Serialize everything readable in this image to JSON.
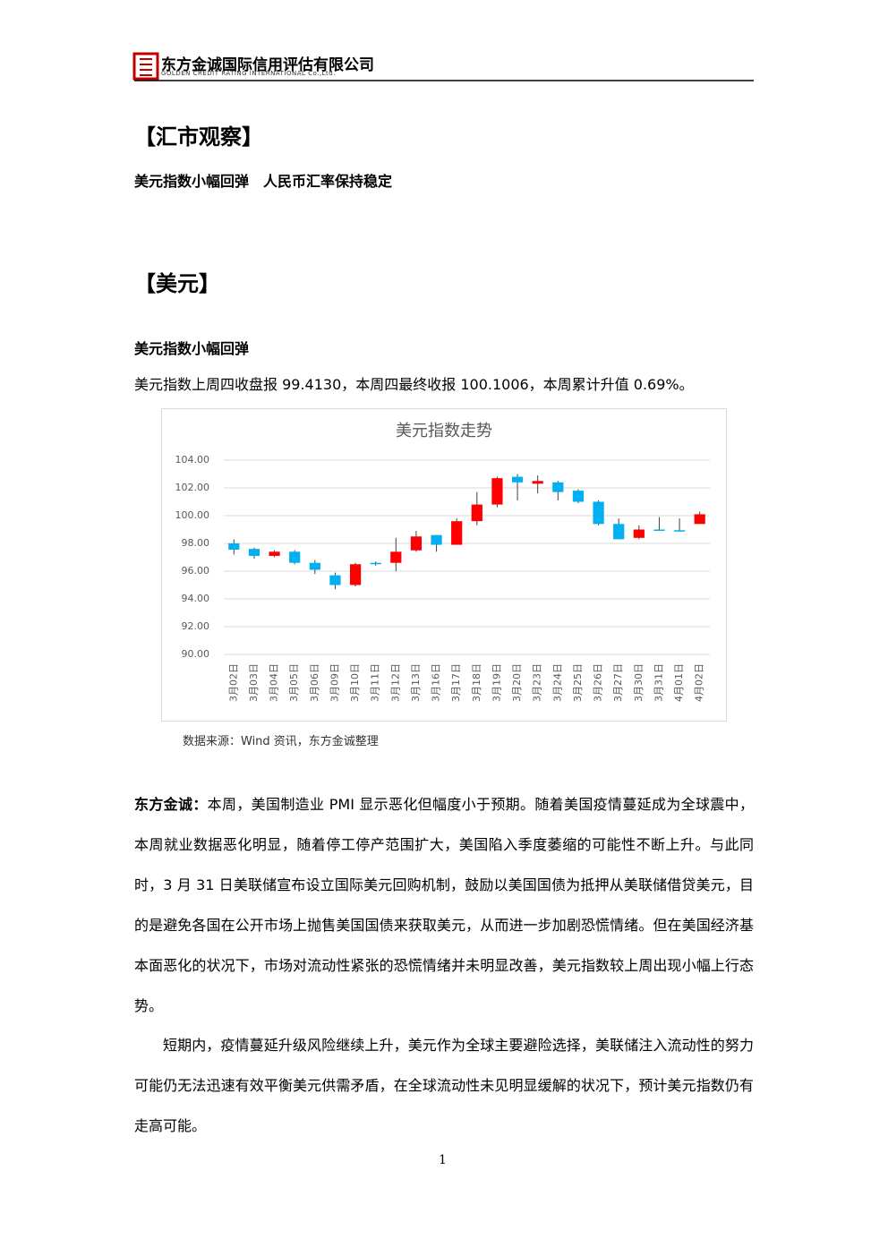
{
  "header": {
    "company": "东方金诚国际信用评估有限公司",
    "company_en": "GOLDEN CREDIT RATING INTERNATIONAL Co.,Ltd."
  },
  "section_title": "【汇市观察】",
  "headline": "美元指数小幅回弹　人民币汇率保持稳定",
  "subsection_title": "【美元】",
  "subheading": "美元指数小幅回弹",
  "intro": "美元指数上周四收盘报 99.4130，本周四最终收报 100.1006，本周累计升值 0.69%。",
  "chart_data": {
    "type": "candlestick",
    "title": "美元指数走势",
    "categories": [
      "3月02日",
      "3月03日",
      "3月04日",
      "3月05日",
      "3月06日",
      "3月09日",
      "3月10日",
      "3月11日",
      "3月12日",
      "3月13日",
      "3月16日",
      "3月17日",
      "3月18日",
      "3月19日",
      "3月20日",
      "3月23日",
      "3月24日",
      "3月25日",
      "3月26日",
      "3月27日",
      "3月30日",
      "3月31日",
      "4月01日",
      "4月02日"
    ],
    "open": [
      98.0,
      97.6,
      97.1,
      97.4,
      96.6,
      95.7,
      95.0,
      96.6,
      96.6,
      97.5,
      98.6,
      97.9,
      99.6,
      100.8,
      102.8,
      102.3,
      102.4,
      101.8,
      101.0,
      99.4,
      98.4,
      99.0,
      98.95,
      99.4
    ],
    "high": [
      98.3,
      97.7,
      97.5,
      97.5,
      96.8,
      95.9,
      96.6,
      96.7,
      98.4,
      98.9,
      98.6,
      99.8,
      101.7,
      102.8,
      103.0,
      102.9,
      102.5,
      101.9,
      101.1,
      99.8,
      99.3,
      99.9,
      99.8,
      100.3
    ],
    "low": [
      97.2,
      96.9,
      97.0,
      96.5,
      95.8,
      94.7,
      94.9,
      96.4,
      96.0,
      97.4,
      97.4,
      97.9,
      99.3,
      100.6,
      101.1,
      101.6,
      101.1,
      100.9,
      99.3,
      98.3,
      98.3,
      98.9,
      98.9,
      99.4
    ],
    "close": [
      97.55,
      97.1,
      97.4,
      96.6,
      96.1,
      95.0,
      96.5,
      96.5,
      97.4,
      98.5,
      97.9,
      99.6,
      100.8,
      102.7,
      102.4,
      102.5,
      101.7,
      101.0,
      99.4,
      98.3,
      99.0,
      98.95,
      98.9,
      100.1
    ],
    "up_color": "#ff0000",
    "down_color": "#00b0f0",
    "ylim": [
      90,
      104
    ],
    "yticks": [
      {
        "value": 90,
        "label": "90.00"
      },
      {
        "value": 92,
        "label": "92.00"
      },
      {
        "value": 94,
        "label": "94.00"
      },
      {
        "value": 96,
        "label": "96.00"
      },
      {
        "value": 98,
        "label": "98.00"
      },
      {
        "value": 100,
        "label": "100.00"
      },
      {
        "value": 102,
        "label": "102.00"
      },
      {
        "value": 104,
        "label": "104.00"
      }
    ],
    "grid": true
  },
  "source": "数据来源：Wind 资讯，东方金诚整理",
  "paragraphs": [
    {
      "lead": "东方金诚：",
      "text": "本周，美国制造业 PMI 显示恶化但幅度小于预期。随着美国疫情蔓延成为全球震中，本周就业数据恶化明显，随着停工停产范围扩大，美国陷入季度萎缩的可能性不断上升。与此同时，3 月 31 日美联储宣布设立国际美元回购机制，鼓励以美国国债为抵押从美联储借贷美元，目的是避免各国在公开市场上抛售美国国债来获取美元，从而进一步加剧恐慌情绪。但在美国经济基本面恶化的状况下，市场对流动性紧张的恐慌情绪并未明显改善，美元指数较上周出现小幅上行态势。"
    },
    {
      "text": "短期内，疫情蔓延升级风险继续上升，美元作为全球主要避险选择，美联储注入流动性的努力可能仍无法迅速有效平衡美元供需矛盾，在全球流动性未见明显缓解的状况下，预计美元指数仍有走高可能。"
    }
  ],
  "page_number": "1"
}
